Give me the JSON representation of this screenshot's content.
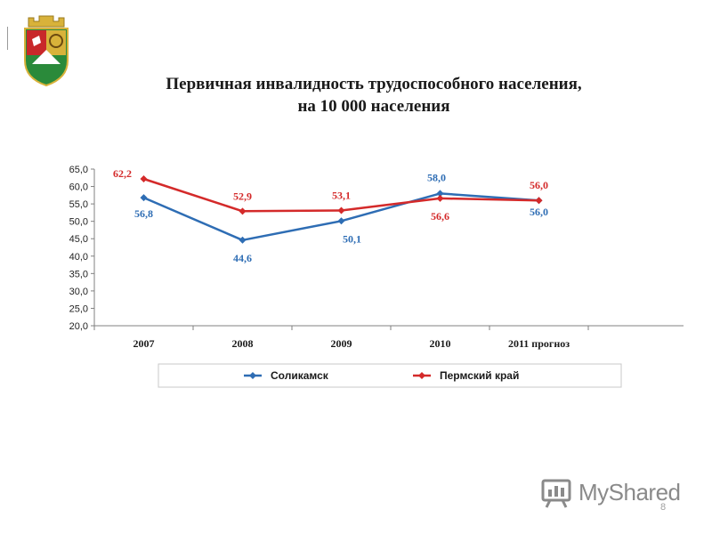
{
  "header": {
    "title_line1": "Первичная инвалидность трудоспособного населения,",
    "title_line2": "на 10 000 населения"
  },
  "watermark": {
    "text": "MyShared"
  },
  "page_number": "8",
  "chart_data": {
    "type": "line",
    "categories": [
      "2007",
      "2008",
      "2009",
      "2010",
      "2011 прогноз"
    ],
    "ylim": [
      20,
      65
    ],
    "yticks": [
      "20,0",
      "25,0",
      "30,0",
      "35,0",
      "40,0",
      "45,0",
      "50,0",
      "55,0",
      "60,0",
      "65,0"
    ],
    "grid": false,
    "legend_placement": "bottom",
    "series": [
      {
        "name": "Соликамск",
        "color": "#2e6db4",
        "values": [
          56.8,
          44.6,
          50.1,
          58.0,
          56.0
        ],
        "labels": [
          "56,8",
          "44,6",
          "50,1",
          "58,0",
          "56,0"
        ]
      },
      {
        "name": "Пермский край",
        "color": "#d42a2a",
        "values": [
          62.2,
          52.9,
          53.1,
          56.6,
          56.0
        ],
        "labels": [
          "62,2",
          "52,9",
          "53,1",
          "56,6",
          "56,0"
        ]
      }
    ]
  }
}
